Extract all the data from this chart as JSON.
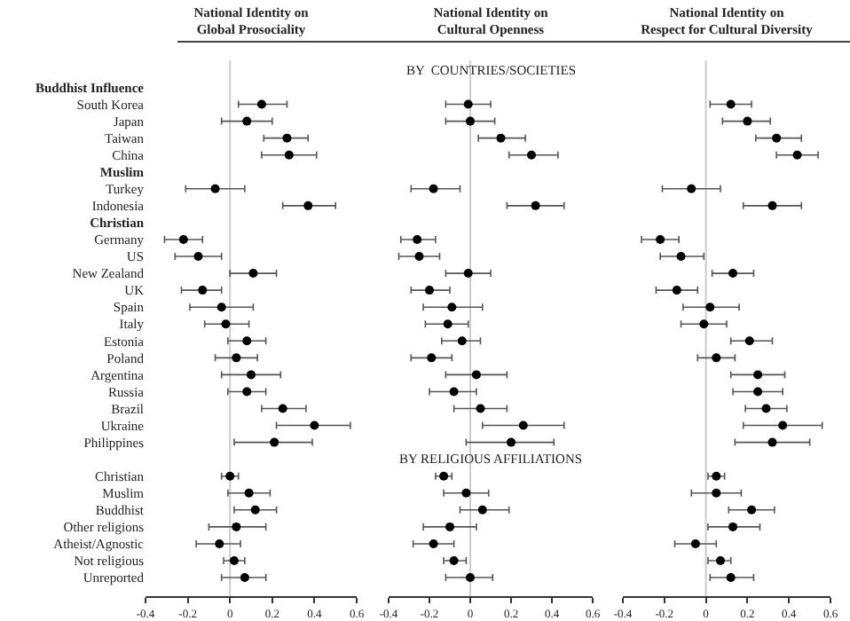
{
  "chart_data": [
    {
      "type": "scatter",
      "orientation": "horizontal",
      "title": "National Identity on\nGlobal Prosociality",
      "marker": "circle",
      "color": "#000000",
      "grid": false,
      "categories": [
        "Buddhist Influence",
        "South Korea",
        "Japan",
        "Taiwan",
        "China",
        "Muslim",
        "Turkey",
        "Indonesia",
        "Christian",
        "Germany",
        "US",
        "New Zealand",
        "UK",
        "Spain",
        "Italy",
        "Estonia",
        "Poland",
        "Argentina",
        "Russia",
        "Brazil",
        "Ukraine",
        "Philippines",
        null,
        "Christian",
        "Muslim",
        "Buddhist",
        "Other religions",
        "Atheist/Agnostic",
        "Not religious",
        "Unreported"
      ],
      "values": [
        null,
        0.15,
        0.08,
        0.27,
        0.28,
        null,
        -0.07,
        0.37,
        null,
        -0.22,
        -0.15,
        0.11,
        -0.13,
        -0.04,
        -0.02,
        0.08,
        0.03,
        0.1,
        0.08,
        0.25,
        0.4,
        0.21,
        null,
        0.0,
        0.09,
        0.12,
        0.03,
        -0.05,
        0.02,
        0.07
      ],
      "errors": [
        null,
        [
          0.04,
          0.27
        ],
        [
          -0.04,
          0.2
        ],
        [
          0.16,
          0.37
        ],
        [
          0.15,
          0.41
        ],
        null,
        [
          -0.21,
          0.07
        ],
        [
          0.25,
          0.5
        ],
        null,
        [
          -0.31,
          -0.13
        ],
        [
          -0.26,
          -0.04
        ],
        [
          0.0,
          0.22
        ],
        [
          -0.23,
          -0.04
        ],
        [
          -0.19,
          0.11
        ],
        [
          -0.12,
          0.09
        ],
        [
          -0.01,
          0.17
        ],
        [
          -0.07,
          0.13
        ],
        [
          -0.04,
          0.24
        ],
        [
          -0.01,
          0.17
        ],
        [
          0.15,
          0.36
        ],
        [
          0.22,
          0.57
        ],
        [
          0.02,
          0.39
        ],
        null,
        [
          -0.04,
          0.04
        ],
        [
          -0.01,
          0.19
        ],
        [
          0.02,
          0.22
        ],
        [
          -0.1,
          0.17
        ],
        [
          -0.16,
          0.05
        ],
        [
          -0.03,
          0.07
        ],
        [
          -0.04,
          0.17
        ]
      ],
      "xlim": [
        -0.4,
        0.6
      ],
      "xticks": [
        -0.4,
        -0.2,
        0,
        0.2,
        0.4,
        0.6
      ],
      "ref_lines": [
        {
          "axis": "x",
          "value": 0,
          "color": "#cccccc"
        }
      ]
    },
    {
      "type": "scatter",
      "orientation": "horizontal",
      "title": "National Identity on\nCultural Openness",
      "marker": "circle",
      "color": "#000000",
      "grid": false,
      "tick_labels": "x",
      "categories": [
        null,
        null,
        null,
        null,
        null,
        null,
        null,
        null,
        null,
        null,
        null,
        null,
        null,
        null,
        null,
        null,
        null,
        null,
        null,
        null,
        null,
        null,
        null,
        null,
        null,
        null,
        null,
        null,
        null,
        null
      ],
      "values": [
        null,
        -0.01,
        0.0,
        0.15,
        0.3,
        null,
        -0.18,
        0.32,
        null,
        -0.26,
        -0.25,
        -0.01,
        -0.2,
        -0.09,
        -0.11,
        -0.04,
        -0.19,
        0.03,
        -0.08,
        0.05,
        0.26,
        0.2,
        null,
        -0.13,
        -0.02,
        0.06,
        -0.1,
        -0.18,
        -0.08,
        0.0
      ],
      "errors": [
        null,
        [
          -0.12,
          0.1
        ],
        [
          -0.12,
          0.12
        ],
        [
          0.04,
          0.27
        ],
        [
          0.19,
          0.43
        ],
        null,
        [
          -0.29,
          -0.05
        ],
        [
          0.18,
          0.46
        ],
        null,
        [
          -0.34,
          -0.17
        ],
        [
          -0.35,
          -0.15
        ],
        [
          -0.12,
          0.1
        ],
        [
          -0.29,
          -0.1
        ],
        [
          -0.23,
          0.06
        ],
        [
          -0.22,
          -0.01
        ],
        [
          -0.14,
          0.05
        ],
        [
          -0.29,
          -0.09
        ],
        [
          -0.12,
          0.18
        ],
        [
          -0.2,
          0.03
        ],
        [
          -0.08,
          0.18
        ],
        [
          0.06,
          0.46
        ],
        [
          -0.02,
          0.41
        ],
        null,
        [
          -0.17,
          -0.09
        ],
        [
          -0.13,
          0.09
        ],
        [
          -0.05,
          0.19
        ],
        [
          -0.23,
          0.03
        ],
        [
          -0.28,
          -0.08
        ],
        [
          -0.13,
          -0.02
        ],
        [
          -0.12,
          0.11
        ]
      ],
      "xlim": [
        -0.4,
        0.6
      ],
      "xticks": [
        -0.4,
        -0.2,
        0,
        0.2,
        0.4,
        0.6
      ],
      "ref_lines": [
        {
          "axis": "x",
          "value": 0,
          "color": "#cccccc"
        }
      ],
      "annotations": [
        "BY  COUNTRIES/SOCIETIES",
        "BY RELIGIOUS AFFILIATIONS"
      ]
    },
    {
      "type": "scatter",
      "orientation": "horizontal",
      "title": "National Identity on\nRespect for Cultural Diversity",
      "marker": "circle",
      "color": "#000000",
      "grid": false,
      "tick_labels": "x",
      "categories": [
        null,
        null,
        null,
        null,
        null,
        null,
        null,
        null,
        null,
        null,
        null,
        null,
        null,
        null,
        null,
        null,
        null,
        null,
        null,
        null,
        null,
        null,
        null,
        null,
        null,
        null,
        null,
        null,
        null,
        null
      ],
      "values": [
        null,
        0.12,
        0.2,
        0.34,
        0.44,
        null,
        -0.07,
        0.32,
        null,
        -0.22,
        -0.12,
        0.13,
        -0.14,
        0.02,
        -0.01,
        0.21,
        0.05,
        0.25,
        0.25,
        0.29,
        0.37,
        0.32,
        null,
        0.05,
        0.05,
        0.22,
        0.13,
        -0.05,
        0.07,
        0.12
      ],
      "errors": [
        null,
        [
          0.02,
          0.22
        ],
        [
          0.08,
          0.31
        ],
        [
          0.24,
          0.46
        ],
        [
          0.34,
          0.54
        ],
        null,
        [
          -0.21,
          0.07
        ],
        [
          0.18,
          0.46
        ],
        null,
        [
          -0.31,
          -0.13
        ],
        [
          -0.22,
          -0.01
        ],
        [
          0.03,
          0.23
        ],
        [
          -0.24,
          -0.04
        ],
        [
          -0.11,
          0.16
        ],
        [
          -0.12,
          0.1
        ],
        [
          0.12,
          0.32
        ],
        [
          -0.04,
          0.14
        ],
        [
          0.12,
          0.38
        ],
        [
          0.13,
          0.37
        ],
        [
          0.19,
          0.39
        ],
        [
          0.18,
          0.56
        ],
        [
          0.14,
          0.5
        ],
        null,
        [
          0.01,
          0.09
        ],
        [
          -0.07,
          0.17
        ],
        [
          0.11,
          0.33
        ],
        [
          0.01,
          0.26
        ],
        [
          -0.15,
          0.05
        ],
        [
          0.01,
          0.12
        ],
        [
          0.02,
          0.23
        ]
      ],
      "xlim": [
        -0.4,
        0.6
      ],
      "xticks": [
        -0.4,
        -0.2,
        0,
        0.2,
        0.4,
        0.6
      ],
      "ref_lines": [
        {
          "axis": "x",
          "value": 0,
          "color": "#cccccc"
        }
      ]
    }
  ]
}
